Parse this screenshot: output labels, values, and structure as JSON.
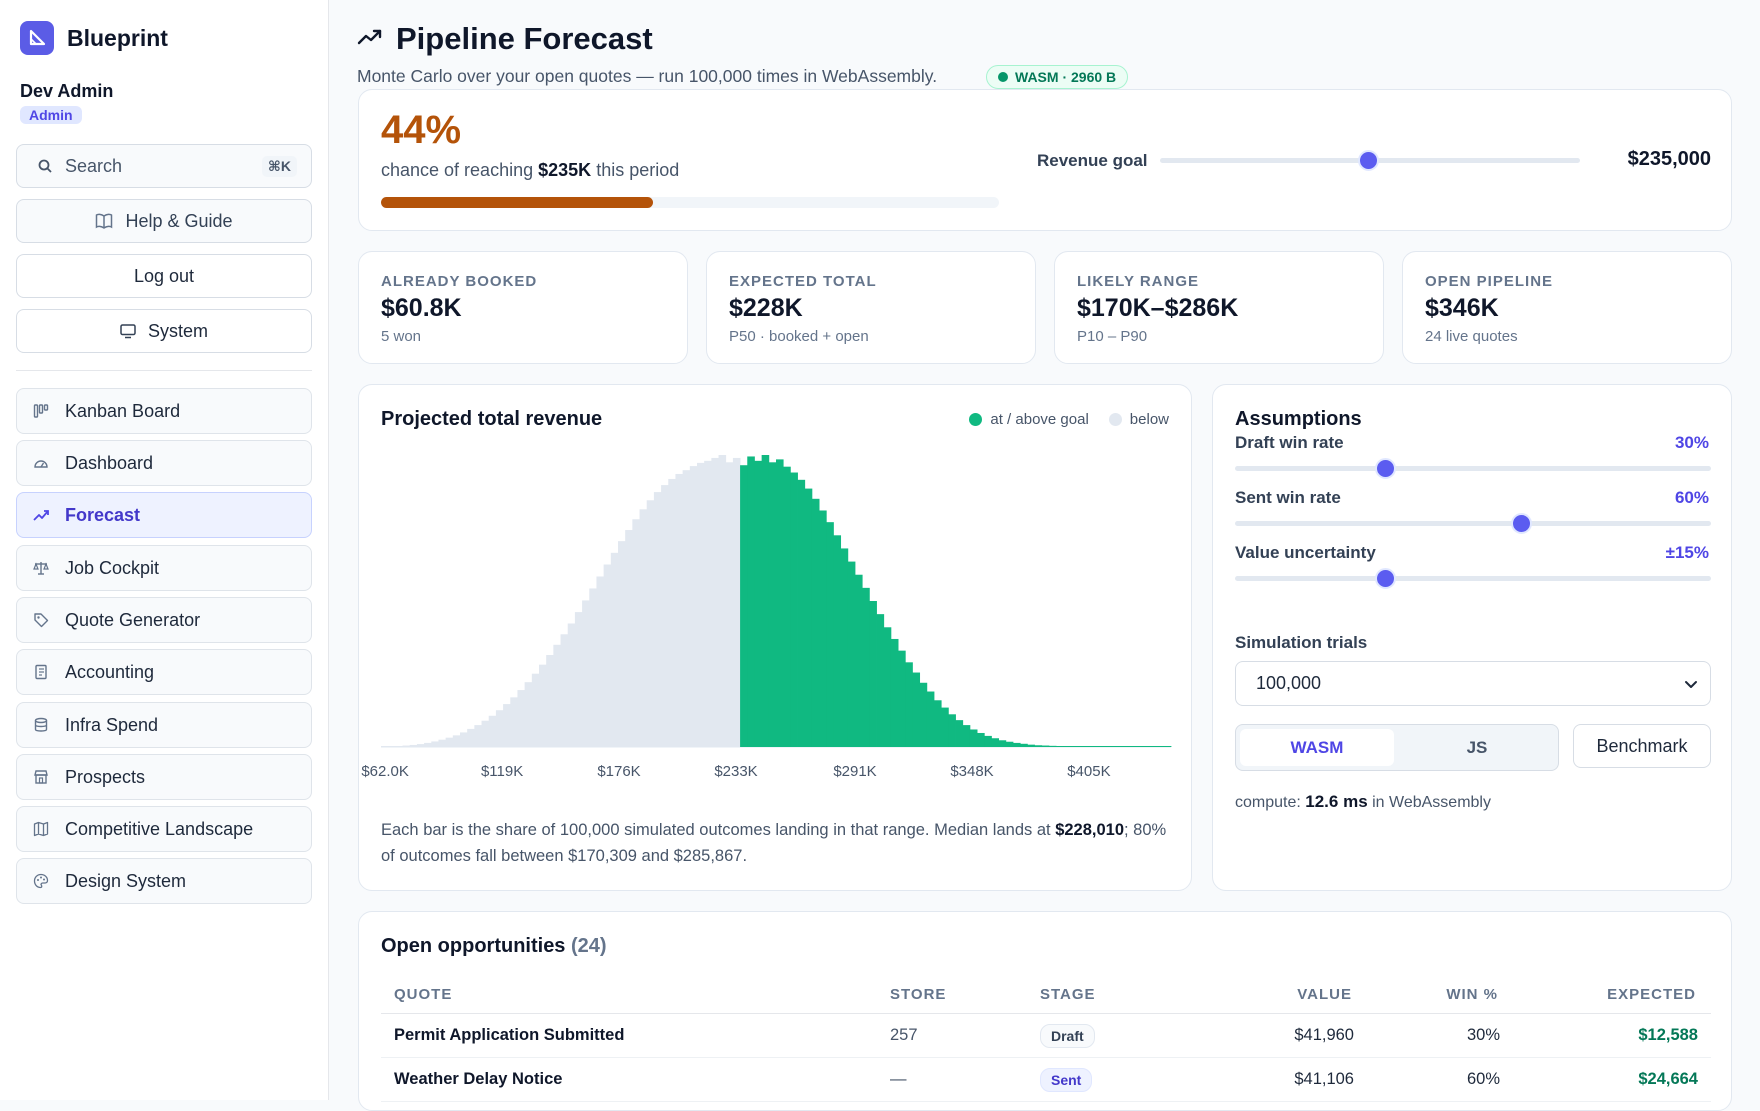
{
  "app": {
    "name": "Blueprint"
  },
  "user": {
    "name": "Dev Admin",
    "role": "Admin"
  },
  "sidebar": {
    "search_label": "Search",
    "search_shortcut": "⌘K",
    "help_label": "Help & Guide",
    "logout_label": "Log out",
    "system_label": "System",
    "nav": [
      {
        "label": "Kanban Board",
        "icon": "kanban-icon"
      },
      {
        "label": "Dashboard",
        "icon": "gauge-icon"
      },
      {
        "label": "Forecast",
        "icon": "trending-up-icon",
        "active": true
      },
      {
        "label": "Job Cockpit",
        "icon": "scale-icon"
      },
      {
        "label": "Quote Generator",
        "icon": "tag-icon"
      },
      {
        "label": "Accounting",
        "icon": "ledger-icon"
      },
      {
        "label": "Infra Spend",
        "icon": "database-icon"
      },
      {
        "label": "Prospects",
        "icon": "store-icon"
      },
      {
        "label": "Competitive Landscape",
        "icon": "map-icon"
      },
      {
        "label": "Design System",
        "icon": "palette-icon"
      }
    ]
  },
  "header": {
    "title": "Pipeline Forecast",
    "subtitle": "Monte Carlo over your open quotes — run 100,000 times in WebAssembly.",
    "badge": "WASM · 2960 B"
  },
  "hero": {
    "probability": "44%",
    "probability_value": 0.44,
    "text_before": "chance of reaching",
    "goal_short": "$235K",
    "text_after": "this period",
    "goal_label": "Revenue goal",
    "goal_value": "$235,000",
    "goal_slider_fraction": 0.49
  },
  "stats": [
    {
      "label": "Already booked",
      "value": "$60.8K",
      "sub": "5 won"
    },
    {
      "label": "Expected total",
      "value": "$228K",
      "sub": "P50 · booked + open"
    },
    {
      "label": "Likely range",
      "value": "$170K–$286K",
      "sub": "P10 – P90"
    },
    {
      "label": "Open pipeline",
      "value": "$346K",
      "sub": "24 live quotes"
    }
  ],
  "chart": {
    "title": "Projected total revenue",
    "legend_above": "at / above goal",
    "legend_below": "below",
    "caption_prefix": "Each bar is the share of 100,000 simulated outcomes landing in that range. Median lands at",
    "caption_median": "$228,010",
    "caption_suffix": "; 80% of outcomes fall between $170,309 and $285,867.",
    "colors": {
      "above": "#10b981",
      "below": "#e2e8f0"
    }
  },
  "chart_data": {
    "type": "bar",
    "title": "Projected total revenue",
    "xlabel": "",
    "ylabel": "",
    "x_ticks": [
      "$62.0K",
      "$119K",
      "$176K",
      "$233K",
      "$291K",
      "$348K",
      "$405K"
    ],
    "x_tick_values": [
      62000,
      119000,
      176000,
      233000,
      291000,
      348000,
      405000
    ],
    "x_range": [
      60000,
      445000
    ],
    "goal": 235000,
    "series": [
      {
        "name": "below",
        "color": "#e2e8f0"
      },
      {
        "name": "at / above goal",
        "color": "#10b981"
      }
    ],
    "values": [
      0.1,
      0.2,
      0.3,
      0.5,
      0.7,
      1.0,
      1.4,
      1.9,
      2.5,
      3.2,
      4.0,
      5.0,
      6.2,
      7.5,
      9.0,
      10.7,
      12.6,
      14.7,
      17.0,
      19.5,
      22.2,
      25.1,
      28.2,
      31.5,
      35.0,
      38.6,
      42.3,
      46.2,
      50.2,
      54.3,
      58.4,
      62.5,
      66.5,
      70.5,
      74.3,
      78.0,
      81.4,
      84.5,
      87.3,
      89.7,
      91.8,
      93.5,
      94.8,
      96.2,
      97.3,
      98.0,
      99.0,
      100.0,
      97.5,
      99.0,
      96.5,
      99.5,
      98.0,
      100.0,
      97.5,
      98.5,
      96.0,
      94.0,
      91.5,
      88.5,
      85.0,
      81.0,
      77.0,
      72.5,
      68.0,
      63.5,
      59.0,
      54.5,
      50.0,
      45.5,
      41.0,
      37.0,
      33.0,
      29.0,
      25.5,
      22.0,
      19.0,
      16.0,
      13.5,
      11.2,
      9.2,
      7.5,
      6.0,
      4.8,
      3.8,
      3.0,
      2.3,
      1.8,
      1.4,
      1.1,
      0.8,
      0.6,
      0.5,
      0.4,
      0.3,
      0.25,
      0.2,
      0.15,
      0.12,
      0.1,
      0.08,
      0.06,
      0.05,
      0.04,
      0.03,
      0.02,
      0.02,
      0.02,
      0.02,
      0.02
    ]
  },
  "assumptions": {
    "title": "Assumptions",
    "sliders": [
      {
        "label": "Draft win rate",
        "value": "30%",
        "fraction": 0.31
      },
      {
        "label": "Sent win rate",
        "value": "60%",
        "fraction": 0.596
      },
      {
        "label": "Value uncertainty",
        "value": "±15%",
        "fraction": 0.31
      }
    ],
    "trials_label": "Simulation trials",
    "trials_value": "100,000",
    "engine_wasm": "WASM",
    "engine_js": "JS",
    "benchmark_label": "Benchmark",
    "compute_prefix": "compute:",
    "compute_time": "12.6 ms",
    "compute_suffix": "in WebAssembly"
  },
  "table": {
    "title": "Open opportunities",
    "count": "(24)",
    "columns": [
      "QUOTE",
      "STORE",
      "STAGE",
      "VALUE",
      "WIN %",
      "EXPECTED"
    ],
    "rows": [
      {
        "quote": "Permit Application Submitted",
        "store": "257",
        "stage": "Draft",
        "value": "$41,960",
        "win": "30%",
        "expected": "$12,588"
      },
      {
        "quote": "Weather Delay Notice",
        "store": "—",
        "stage": "Sent",
        "value": "$41,106",
        "win": "60%",
        "expected": "$24,664"
      }
    ]
  }
}
